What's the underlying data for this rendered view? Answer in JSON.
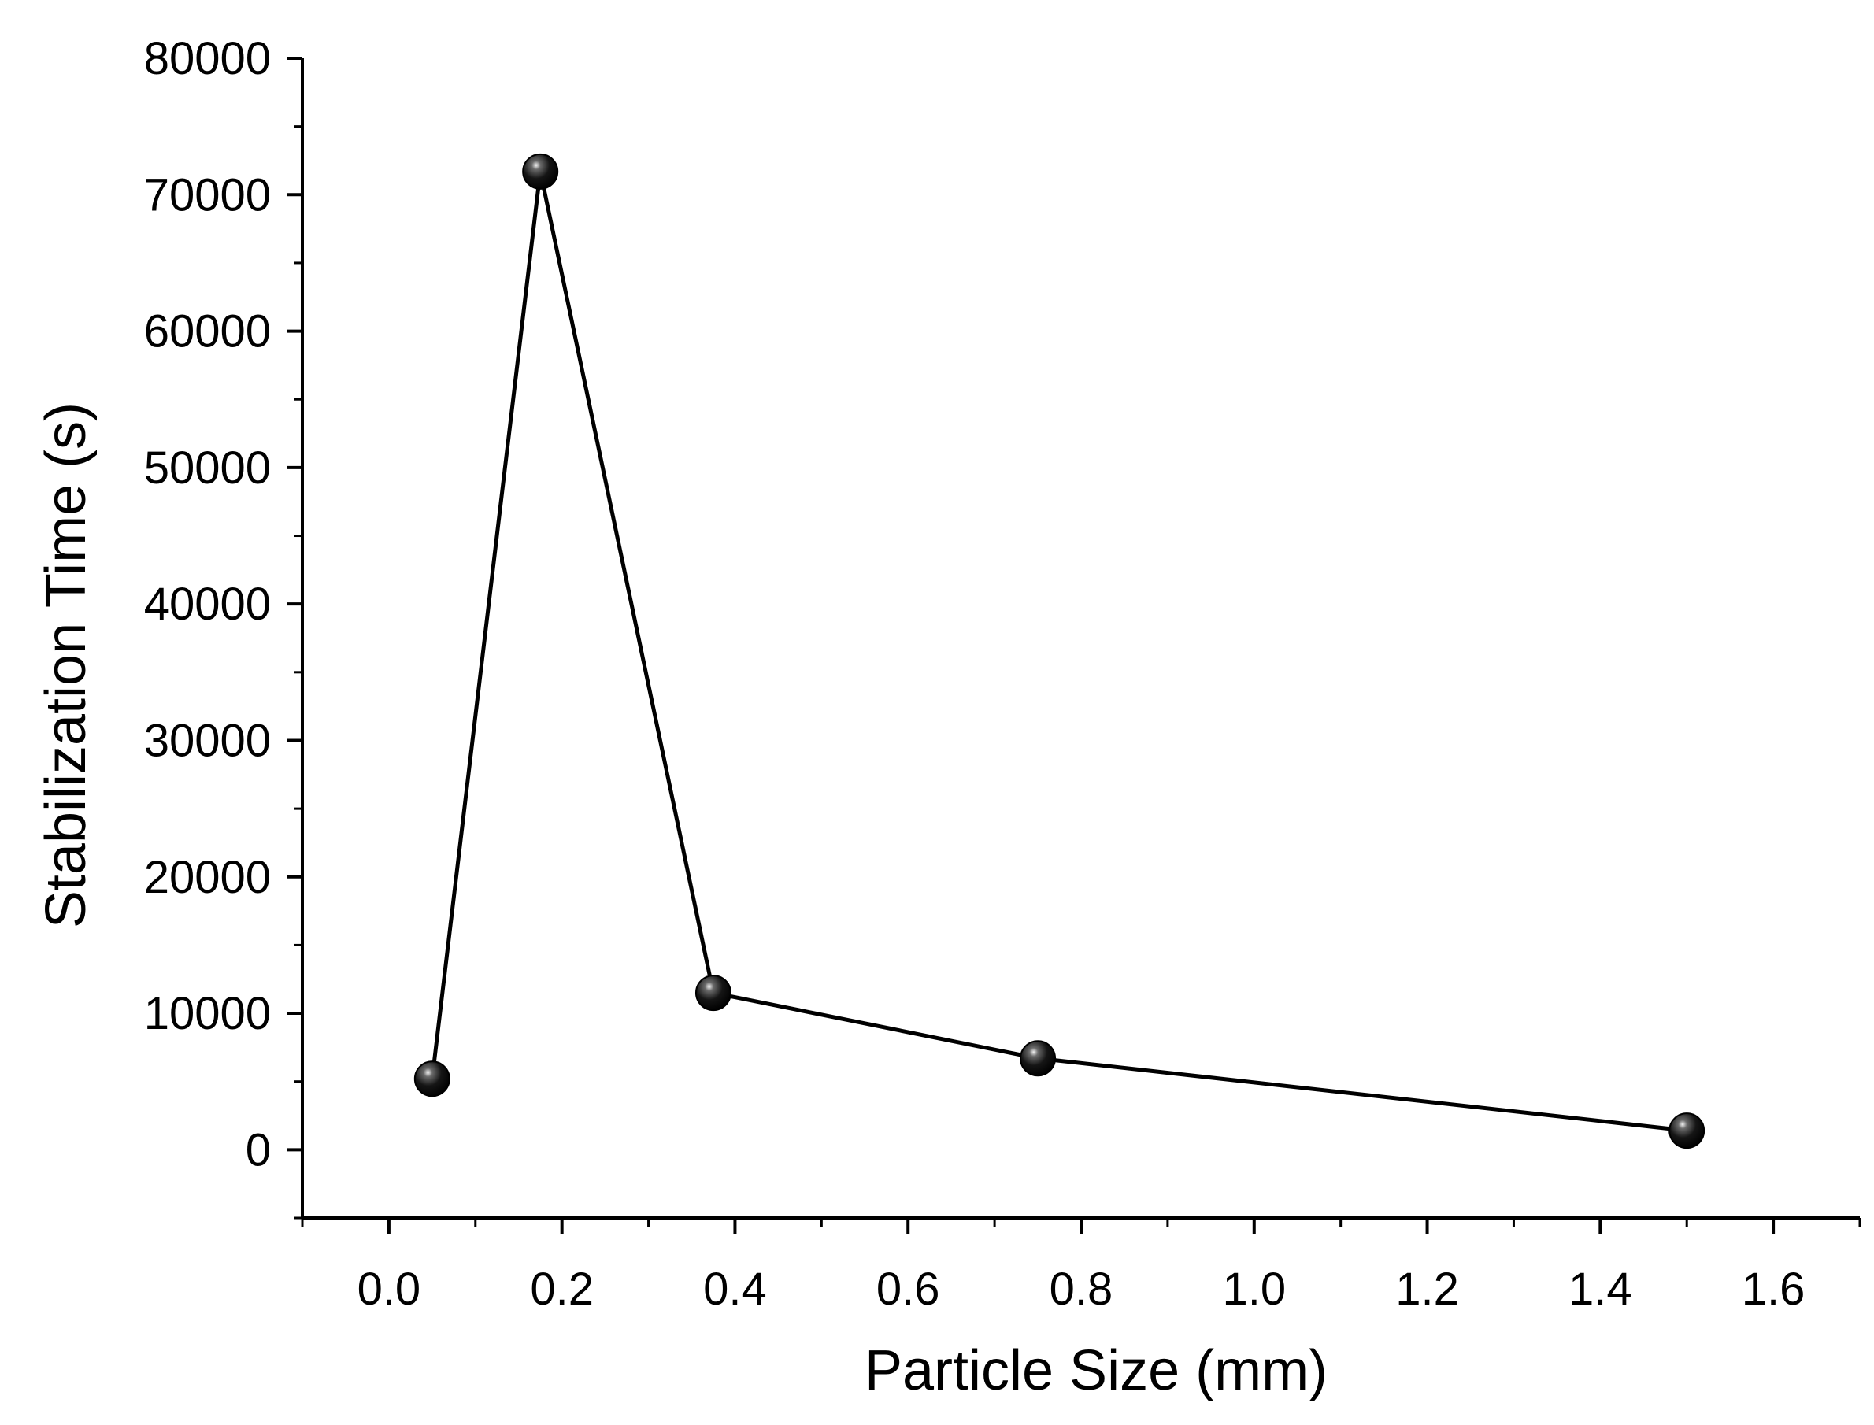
{
  "chart_data": {
    "type": "line",
    "title": "",
    "xlabel": "Particle Size (mm)",
    "ylabel": "Stabilization Time (s)",
    "xlim": [
      -0.1,
      1.7
    ],
    "ylim": [
      -5000,
      80000
    ],
    "xticks": [
      "0.0",
      "0.2",
      "0.4",
      "0.6",
      "0.8",
      "1.0",
      "1.2",
      "1.4",
      "1.6"
    ],
    "yticks": [
      "0",
      "10000",
      "20000",
      "30000",
      "40000",
      "50000",
      "60000",
      "70000",
      "80000"
    ],
    "grid": false,
    "legend": "none",
    "series": [
      {
        "x": [
          0.05,
          0.175,
          0.375,
          0.75,
          1.5
        ],
        "y": [
          5200,
          71700,
          11500,
          6700,
          1400
        ]
      }
    ],
    "colors": {
      "line": "#000000",
      "marker": "#111111",
      "axis": "#000000"
    }
  }
}
